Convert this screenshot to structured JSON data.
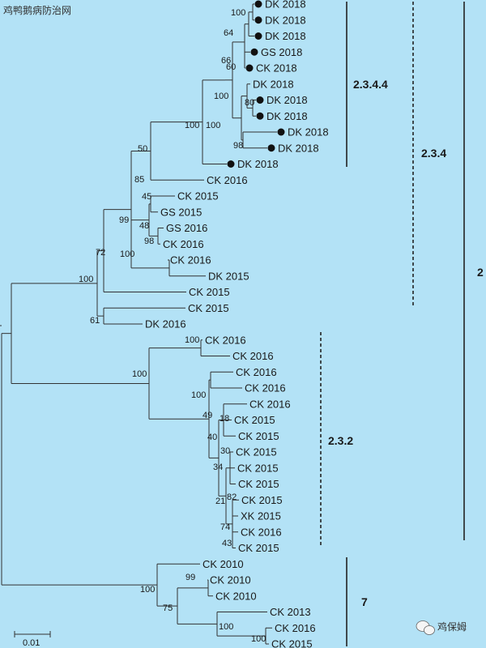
{
  "watermark_top": "鸡鸭鹅病防治网",
  "watermark_bottom": "鸡保姆",
  "scale_label": "0.01",
  "clade_labels": [
    "2.3.4.4",
    "2.3.4",
    "2.3.2",
    "2",
    "7"
  ],
  "leaves": [
    {
      "label": "DK 2018",
      "dot": true
    },
    {
      "label": "DK 2018",
      "dot": true
    },
    {
      "label": "DK 2018",
      "dot": true
    },
    {
      "label": "GS 2018",
      "dot": true
    },
    {
      "label": "CK 2018",
      "dot": true
    },
    {
      "label": "DK 2018",
      "dot": false
    },
    {
      "label": "DK 2018",
      "dot": true
    },
    {
      "label": "DK 2018",
      "dot": true
    },
    {
      "label": "DK 2018",
      "dot": true
    },
    {
      "label": "DK 2018",
      "dot": true
    },
    {
      "label": "DK 2018",
      "dot": true
    },
    {
      "label": "CK 2016",
      "dot": false
    },
    {
      "label": "CK 2015",
      "dot": false
    },
    {
      "label": "GS 2015",
      "dot": false
    },
    {
      "label": "GS 2016",
      "dot": false
    },
    {
      "label": "CK 2016",
      "dot": false
    },
    {
      "label": "CK 2016",
      "dot": false
    },
    {
      "label": "DK 2015",
      "dot": false
    },
    {
      "label": "CK 2015",
      "dot": false
    },
    {
      "label": "CK 2015",
      "dot": false
    },
    {
      "label": "DK 2016",
      "dot": false
    },
    {
      "label": "CK 2016",
      "dot": false
    },
    {
      "label": "CK 2016",
      "dot": false
    },
    {
      "label": "CK 2016",
      "dot": false
    },
    {
      "label": "CK 2016",
      "dot": false
    },
    {
      "label": "CK 2016",
      "dot": false
    },
    {
      "label": "CK 2015",
      "dot": false
    },
    {
      "label": "CK 2015",
      "dot": false
    },
    {
      "label": "CK 2015",
      "dot": false
    },
    {
      "label": "CK 2015",
      "dot": false
    },
    {
      "label": "CK 2015",
      "dot": false
    },
    {
      "label": "CK 2015",
      "dot": false
    },
    {
      "label": "XK 2015",
      "dot": false
    },
    {
      "label": "CK 2016",
      "dot": false
    },
    {
      "label": "CK 2015",
      "dot": false
    },
    {
      "label": "CK 2010",
      "dot": false
    },
    {
      "label": "CK 2010",
      "dot": false
    },
    {
      "label": "CK 2010",
      "dot": false
    },
    {
      "label": "CK 2013",
      "dot": false
    },
    {
      "label": "CK 2016",
      "dot": false
    },
    {
      "label": "CK 2015",
      "dot": false
    }
  ],
  "bootstraps": [
    "100",
    "64",
    "66",
    "60",
    "100",
    "80",
    "100",
    "98",
    "100",
    "50",
    "85",
    "45",
    "48",
    "98",
    "99",
    "72",
    "100",
    "100",
    "61",
    "100",
    "100",
    "100",
    "49",
    "18",
    "40",
    "30",
    "34",
    "21",
    "82",
    "74",
    "43",
    "99",
    "100",
    "75",
    "100",
    "100"
  ]
}
